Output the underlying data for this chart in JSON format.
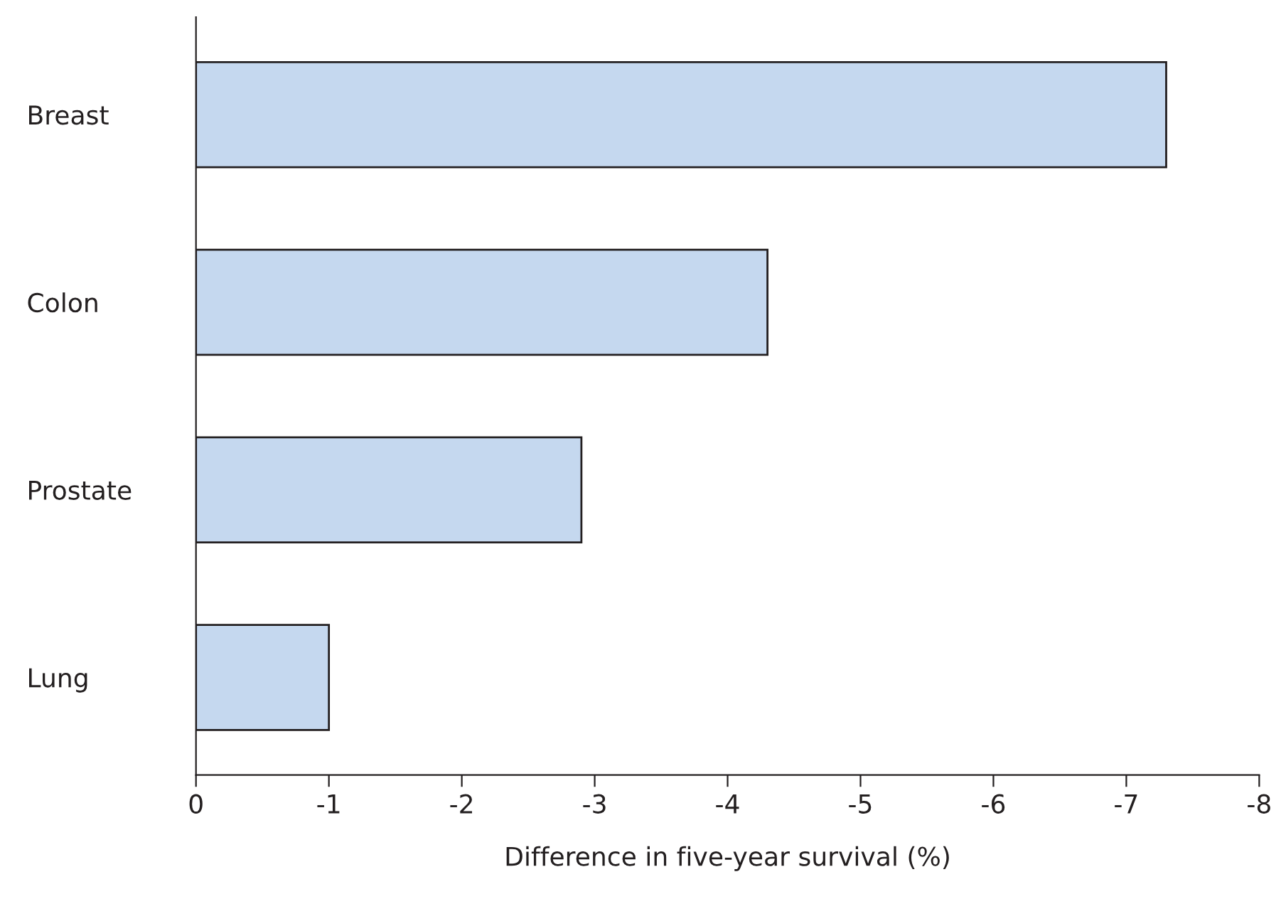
{
  "chart_data": {
    "type": "bar",
    "orientation": "horizontal",
    "xlabel": "Difference in five-year survival (%)",
    "categories": [
      "Breast",
      "Colon",
      "Prostate",
      "Lung"
    ],
    "values": [
      -7.3,
      -4.3,
      -2.9,
      -1.0
    ],
    "color": "#c5d8ef",
    "xlim": [
      0,
      -8
    ],
    "xticks": [
      0,
      -1,
      -2,
      -3,
      -4,
      -5,
      -6,
      -7,
      -8
    ],
    "grid": false
  }
}
